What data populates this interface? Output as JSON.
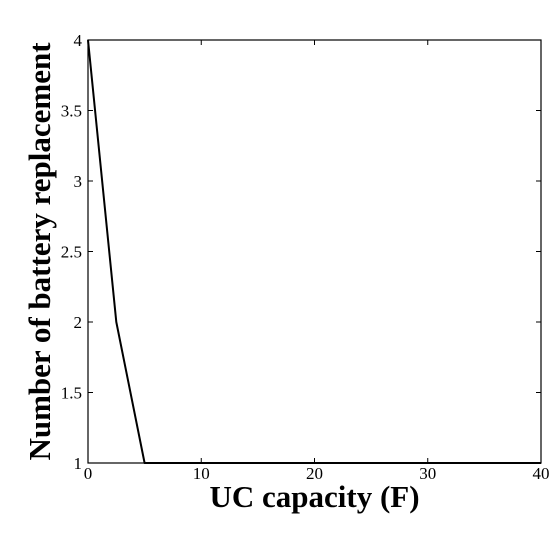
{
  "chart_data": {
    "type": "line",
    "title": "",
    "xlabel": "UC capacity (F)",
    "ylabel": "Number of battery replacement",
    "xlim": [
      0,
      40
    ],
    "ylim": [
      1,
      4
    ],
    "xticks": [
      0,
      10,
      20,
      30,
      40
    ],
    "yticks": [
      1,
      1.5,
      2,
      2.5,
      3,
      3.5,
      4
    ],
    "xtick_labels": [
      "0",
      "10",
      "20",
      "30",
      "40"
    ],
    "ytick_labels": [
      "1",
      "1.5",
      "2",
      "2.5",
      "3",
      "3.5",
      "4"
    ],
    "grid": false,
    "legend": "none",
    "series": [
      {
        "color": "#000000",
        "x": [
          0,
          2.5,
          5,
          7.5,
          10,
          15,
          20,
          25,
          30,
          35,
          40
        ],
        "y": [
          4,
          2,
          1,
          1,
          1,
          1,
          1,
          1,
          1,
          1,
          1
        ]
      }
    ]
  }
}
